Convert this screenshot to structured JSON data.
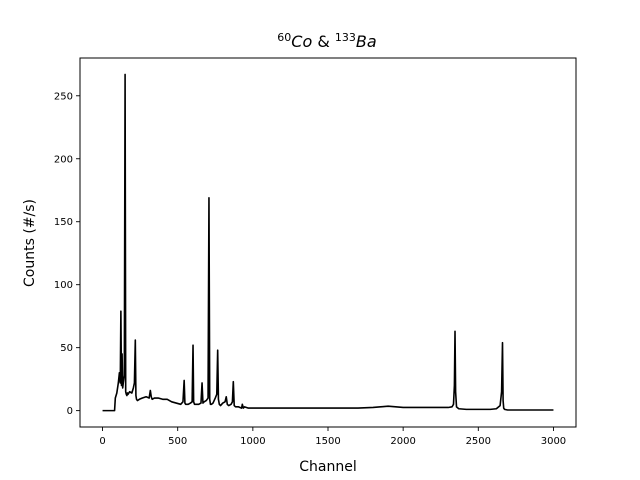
{
  "chart_data": {
    "type": "line",
    "title": {
      "part1_sup": "60",
      "part1": "Co",
      "joiner": " & ",
      "part2_sup": "133",
      "part2": "Ba"
    },
    "xlabel": "Channel",
    "ylabel": "Counts (#/s)",
    "xlim": [
      -150,
      3150
    ],
    "ylim": [
      -13,
      280
    ],
    "xticks": [
      0,
      500,
      1000,
      1500,
      2000,
      2500,
      3000
    ],
    "yticks": [
      0,
      50,
      100,
      150,
      200,
      250
    ],
    "grid": false,
    "line_color": "#000000",
    "series": [
      {
        "x": [
          0,
          80,
          85,
          95,
          105,
          112,
          118,
          122,
          126,
          130,
          134,
          138,
          145,
          150,
          154,
          158,
          162,
          166,
          170,
          180,
          195,
          205,
          212,
          218,
          222,
          226,
          232,
          245,
          265,
          290,
          310,
          318,
          324,
          330,
          345,
          370,
          400,
          430,
          460,
          490,
          520,
          535,
          543,
          548,
          553,
          560,
          570,
          585,
          596,
          602,
          606,
          612,
          620,
          640,
          655,
          662,
          668,
          676,
          690,
          702,
          708,
          713,
          718,
          724,
          735,
          750,
          760,
          766,
          771,
          777,
          785,
          800,
          815,
          823,
          830,
          840,
          855,
          864,
          870,
          876,
          885,
          905,
          925,
          930,
          937,
          945,
          970,
          1000,
          1100,
          1200,
          1300,
          1400,
          1500,
          1600,
          1700,
          1800,
          1850,
          1900,
          1950,
          2000,
          2100,
          2200,
          2250,
          2300,
          2325,
          2335,
          2341,
          2345,
          2349,
          2355,
          2370,
          2420,
          2500,
          2580,
          2620,
          2645,
          2655,
          2661,
          2665,
          2669,
          2675,
          2695,
          2750,
          2850,
          3000
        ],
        "y": [
          0,
          0,
          10,
          14,
          22,
          30,
          22,
          79,
          20,
          45,
          18,
          22,
          28,
          267,
          15,
          13,
          12,
          14,
          13,
          15,
          14,
          18,
          22,
          56,
          12,
          9,
          8,
          9,
          10,
          11,
          10,
          16,
          11,
          9,
          10,
          10,
          9,
          9,
          7,
          6,
          5,
          7,
          24,
          6,
          5,
          5,
          5,
          6,
          7,
          52,
          7,
          5,
          5,
          5,
          6,
          22,
          6,
          7,
          8,
          10,
          169,
          9,
          5,
          5,
          6,
          10,
          13,
          48,
          9,
          5,
          4,
          6,
          7,
          11,
          5,
          4,
          5,
          7,
          23,
          4,
          3,
          3,
          2,
          5,
          2,
          3,
          2,
          2,
          2,
          2,
          2,
          2,
          2,
          2,
          2,
          2.5,
          3,
          3.5,
          3,
          2.5,
          2.5,
          2.5,
          2.5,
          2.5,
          3,
          5,
          20,
          63,
          15,
          3,
          1.5,
          1,
          1,
          1,
          1.5,
          4,
          15,
          54,
          8,
          2,
          1,
          0.5,
          0.5,
          0.5,
          0.5
        ]
      }
    ]
  }
}
